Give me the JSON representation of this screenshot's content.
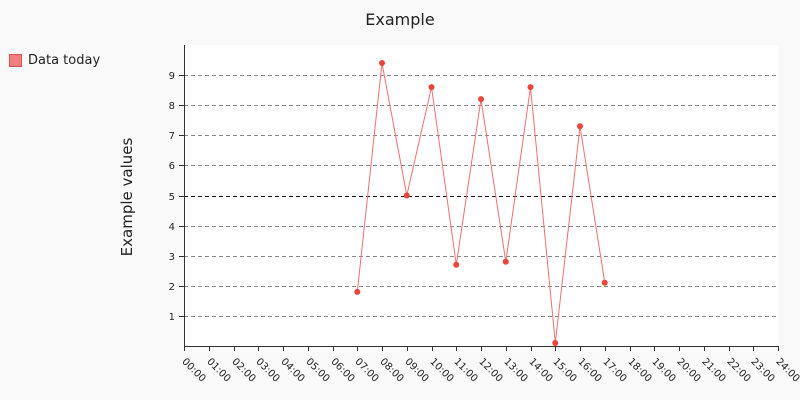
{
  "chart_data": {
    "type": "line",
    "title": "Example",
    "ylabel": "Example values",
    "xlabel": "",
    "legend": {
      "label": "Data today",
      "placement": "top-left",
      "color": "#f08080"
    },
    "series_color": "#e8453c",
    "line_color": "#f07070",
    "x_ticks": [
      "00:00",
      "01:00",
      "02:00",
      "03:00",
      "04:00",
      "05:00",
      "06:00",
      "07:00",
      "08:00",
      "09:00",
      "10:00",
      "11:00",
      "12:00",
      "13:00",
      "14:00",
      "15:00",
      "16:00",
      "17:00",
      "18:00",
      "19:00",
      "20:00",
      "21:00",
      "22:00",
      "23:00",
      "24:00"
    ],
    "xlim": [
      0,
      24
    ],
    "ylim": [
      0,
      10
    ],
    "y_ticks": [
      1,
      2,
      3,
      4,
      5,
      6,
      7,
      8,
      9
    ],
    "threshold": 5,
    "grid": true,
    "series": [
      {
        "name": "Data today",
        "points": [
          {
            "x": 7,
            "y": 1.8
          },
          {
            "x": 8,
            "y": 9.4
          },
          {
            "x": 9,
            "y": 5.0
          },
          {
            "x": 10,
            "y": 8.6
          },
          {
            "x": 11,
            "y": 2.7
          },
          {
            "x": 12,
            "y": 8.2
          },
          {
            "x": 13,
            "y": 2.8
          },
          {
            "x": 14,
            "y": 8.6
          },
          {
            "x": 15,
            "y": 0.1
          },
          {
            "x": 16,
            "y": 7.3
          },
          {
            "x": 17,
            "y": 2.1
          }
        ]
      }
    ]
  }
}
